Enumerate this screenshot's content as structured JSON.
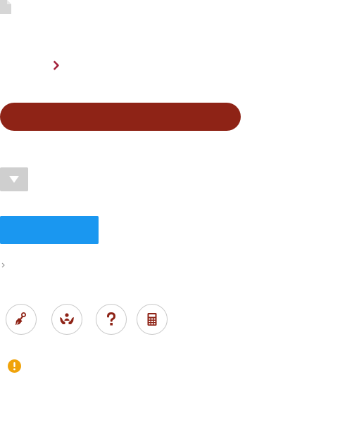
{
  "colors": {
    "accent_maroon": "#8e2316",
    "primary_blue": "#1a97f0",
    "neutral_grey": "#cfcfcf",
    "icon_grey": "#d6d6d6",
    "warning_orange": "#f0a30a",
    "circle_border": "#c8c8c8"
  },
  "icons": {
    "document": "file-icon",
    "chevron": "chevron-right-icon",
    "dropdown": "caret-down-icon",
    "tiny_caret": "caret-right-icon",
    "circle_buttons": [
      "paint-brush-icon",
      "hands-holding-person-icon",
      "question-icon",
      "calculator-icon"
    ],
    "warning": "exclamation-circle-icon"
  },
  "buttons": {
    "pill_label": "",
    "blue_label": ""
  }
}
